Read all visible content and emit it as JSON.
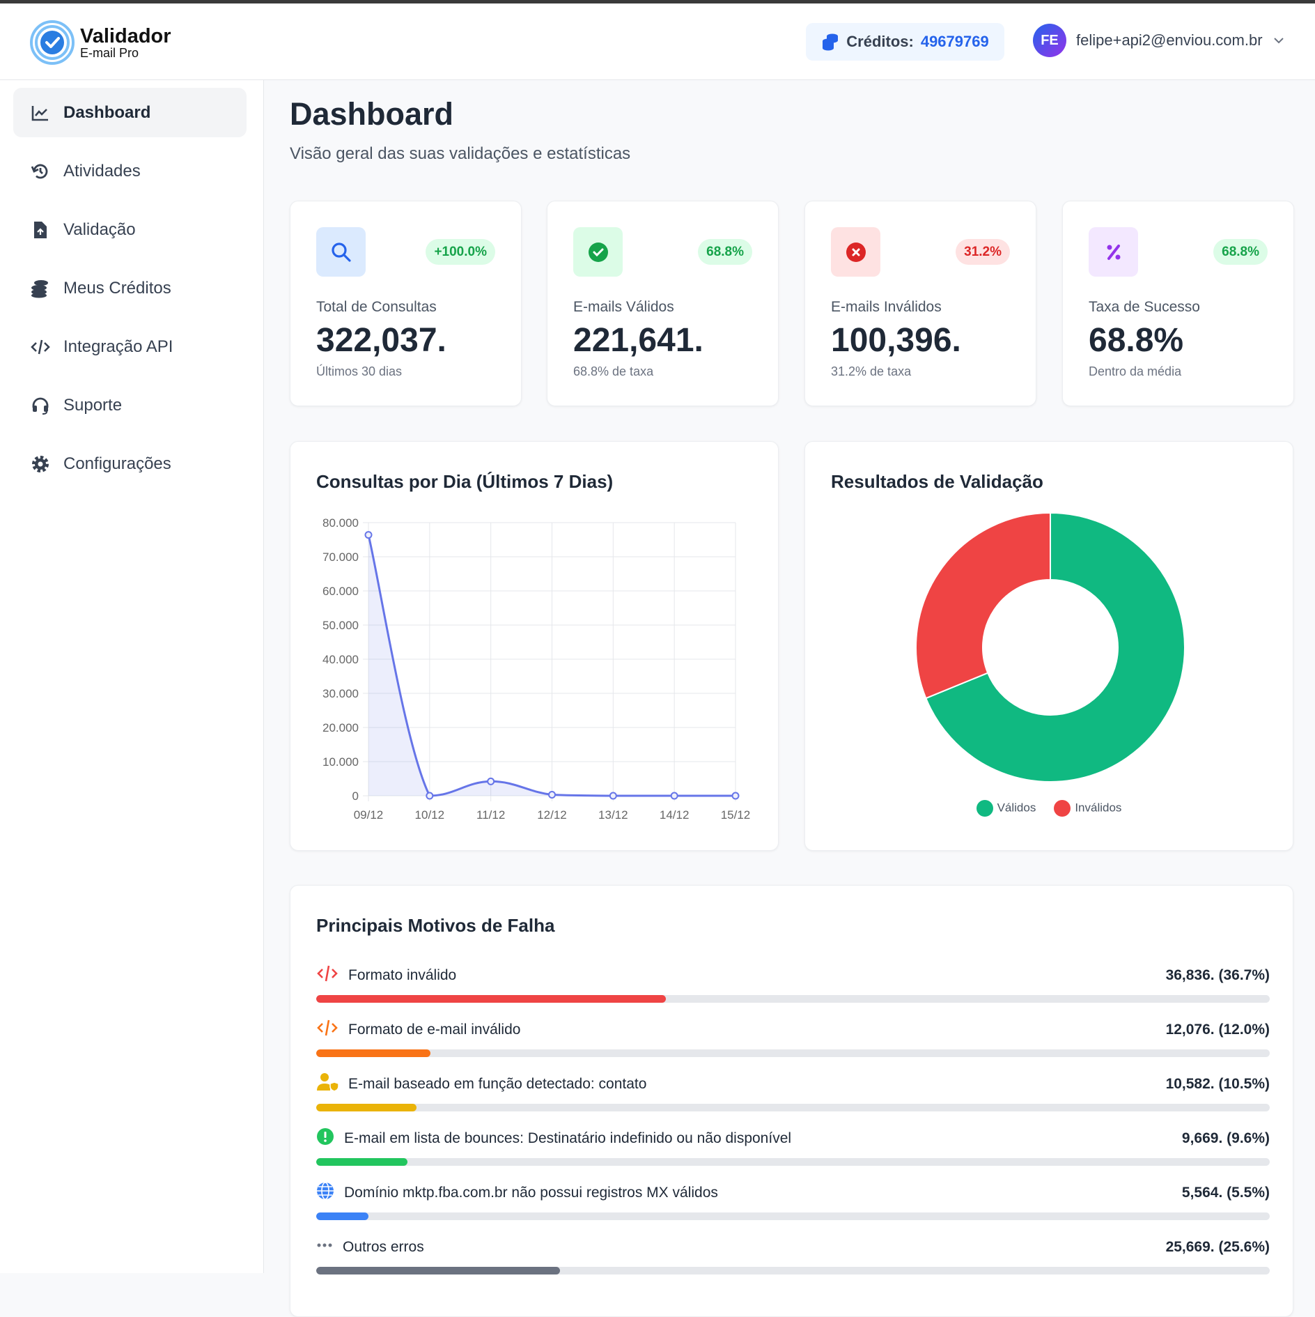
{
  "header": {
    "logo_title": "Validador",
    "logo_subtitle": "E-mail Pro",
    "credits_label": "Créditos:",
    "credits_value": "49679769",
    "avatar_initials": "FE",
    "user_email": "felipe+api2@enviou.com.br"
  },
  "sidebar": {
    "items": [
      {
        "label": "Dashboard",
        "icon": "chart-line-icon",
        "active": true
      },
      {
        "label": "Atividades",
        "icon": "history-icon"
      },
      {
        "label": "Validação",
        "icon": "file-upload-icon"
      },
      {
        "label": "Meus Créditos",
        "icon": "coins-icon"
      },
      {
        "label": "Integração API",
        "icon": "code-icon"
      },
      {
        "label": "Suporte",
        "icon": "headset-icon"
      },
      {
        "label": "Configurações",
        "icon": "gear-icon"
      }
    ]
  },
  "page": {
    "title": "Dashboard",
    "subtitle": "Visão geral das suas validações e estatísticas"
  },
  "stats": [
    {
      "label": "Total de Consultas",
      "value": "322,037.",
      "sub": "Últimos 30 dias",
      "badge": "+100.0%",
      "icon": "search-icon",
      "accent": "#2563eb",
      "bg": "#dbeafe",
      "badge_color": "#16a34a",
      "badge_bg": "#dcfce7"
    },
    {
      "label": "E-mails Válidos",
      "value": "221,641.",
      "sub": "68.8% de taxa",
      "badge": "68.8%",
      "icon": "check-circle-icon",
      "accent": "#16a34a",
      "bg": "#dcfce7",
      "badge_color": "#16a34a",
      "badge_bg": "#dcfce7"
    },
    {
      "label": "E-mails Inválidos",
      "value": "100,396.",
      "sub": "31.2% de taxa",
      "badge": "31.2%",
      "icon": "x-circle-icon",
      "accent": "#dc2626",
      "bg": "#fee2e2",
      "badge_color": "#dc2626",
      "badge_bg": "#fee2e2"
    },
    {
      "label": "Taxa de Sucesso",
      "value": "68.8%",
      "sub": "Dentro da média",
      "badge": "68.8%",
      "icon": "percent-icon",
      "accent": "#9333ea",
      "bg": "#f3e8ff",
      "badge_color": "#16a34a",
      "badge_bg": "#dcfce7"
    }
  ],
  "chart_data": [
    {
      "type": "line",
      "title": "Consultas por Dia (Últimos 7 Dias)",
      "categories": [
        "09/12",
        "10/12",
        "11/12",
        "12/12",
        "13/12",
        "14/12",
        "15/12"
      ],
      "values": [
        76400,
        0,
        4200,
        300,
        0,
        0,
        0
      ],
      "ylim": [
        0,
        80000
      ],
      "yticks": [
        "0",
        "10.000",
        "20.000",
        "30.000",
        "40.000",
        "50.000",
        "60.000",
        "70.000",
        "80.000"
      ],
      "color": "#6675e8",
      "grid": true
    },
    {
      "type": "pie",
      "title": "Resultados de Validação",
      "labels": [
        "Válidos",
        "Inválidos"
      ],
      "values": [
        221641,
        100396
      ],
      "colors": [
        "#10b981",
        "#ef4444"
      ],
      "legend": "bottom"
    }
  ],
  "failures": {
    "title": "Principais Motivos de Falha",
    "items": [
      {
        "label": "Formato inválido",
        "value": "36,836. (36.7%)",
        "percent": 36.7,
        "color": "#ef4444",
        "icon": "code-icon"
      },
      {
        "label": "Formato de e-mail inválido",
        "value": "12,076. (12.0%)",
        "percent": 12.0,
        "color": "#f97316",
        "icon": "code-icon"
      },
      {
        "label": "E-mail baseado em função detectado: contato",
        "value": "10,582. (10.5%)",
        "percent": 10.5,
        "color": "#eab308",
        "icon": "user-shield-icon"
      },
      {
        "label": "E-mail em lista de bounces: Destinatário indefinido ou não disponível",
        "value": "9,669. (9.6%)",
        "percent": 9.6,
        "color": "#22c55e",
        "icon": "exclamation-circle-icon"
      },
      {
        "label": "Domínio mktp.fba.com.br não possui registros MX válidos",
        "value": "5,564. (5.5%)",
        "percent": 5.5,
        "color": "#3b82f6",
        "icon": "globe-icon"
      },
      {
        "label": "Outros erros",
        "value": "25,669. (25.6%)",
        "percent": 25.6,
        "color": "#6b7280",
        "icon": "ellipsis-icon"
      }
    ]
  }
}
